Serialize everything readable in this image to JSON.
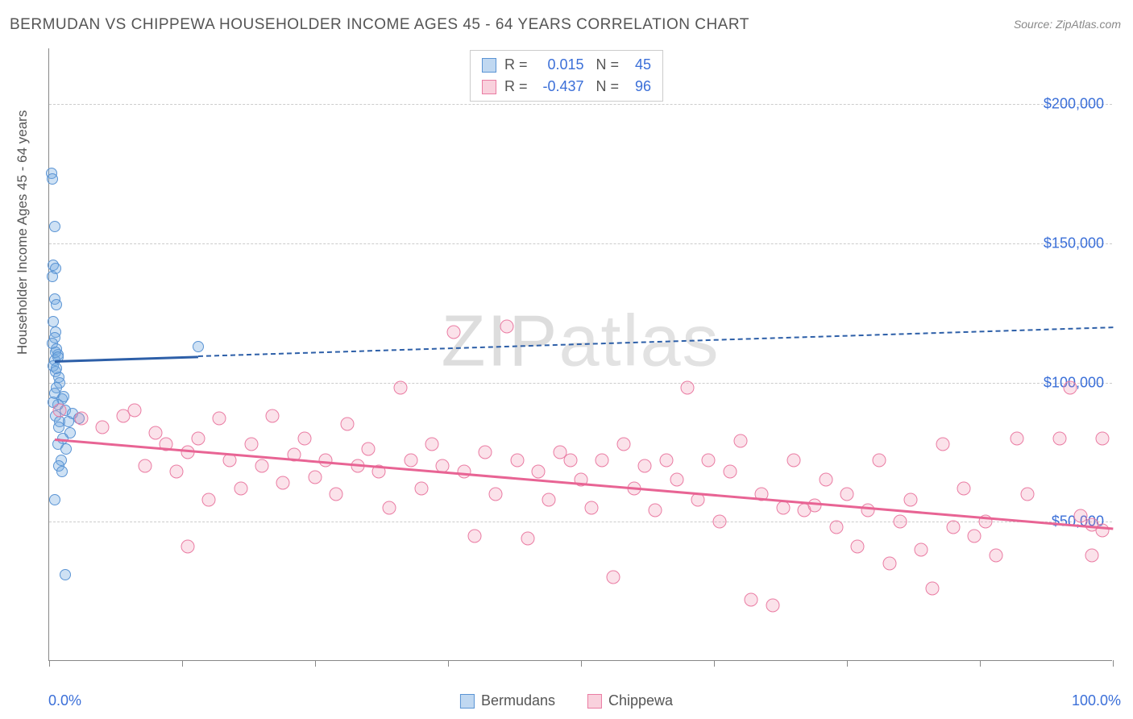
{
  "title": "BERMUDAN VS CHIPPEWA HOUSEHOLDER INCOME AGES 45 - 64 YEARS CORRELATION CHART",
  "source": "Source: ZipAtlas.com",
  "watermark": "ZIPatlas",
  "chart": {
    "type": "scatter",
    "y_axis_title": "Householder Income Ages 45 - 64 years",
    "x_min_label": "0.0%",
    "x_max_label": "100.0%",
    "x_domain": [
      0,
      100
    ],
    "y_domain": [
      0,
      220000
    ],
    "y_gridlines": [
      50000,
      100000,
      150000,
      200000
    ],
    "y_tick_labels": [
      "$50,000",
      "$100,000",
      "$150,000",
      "$200,000"
    ],
    "x_ticks_pct": [
      0,
      12.5,
      25,
      37.5,
      50,
      62.5,
      75,
      87.5,
      100
    ],
    "colors": {
      "blue_fill": "rgba(116,169,223,0.35)",
      "blue_stroke": "#5a94d4",
      "blue_line": "#2d5fa8",
      "pink_fill": "rgba(241,140,170,0.25)",
      "pink_stroke": "#ea7ca3",
      "pink_line": "#e86494",
      "tick_text": "#3b6fd8",
      "grid": "#cccccc",
      "axis": "#888888",
      "bg": "#ffffff"
    },
    "series": [
      {
        "name": "Bermudans",
        "color_key": "blue",
        "r": "0.015",
        "n": "45",
        "trend": {
          "x1": 0.5,
          "y1": 108000,
          "x2": 100,
          "y2": 120000,
          "solid_until_x": 14
        },
        "points": [
          [
            0.2,
            175000
          ],
          [
            0.3,
            173000
          ],
          [
            0.5,
            156000
          ],
          [
            0.4,
            142000
          ],
          [
            0.6,
            141000
          ],
          [
            0.3,
            138000
          ],
          [
            0.5,
            130000
          ],
          [
            0.7,
            128000
          ],
          [
            0.4,
            122000
          ],
          [
            0.6,
            118000
          ],
          [
            0.5,
            116000
          ],
          [
            0.3,
            114000
          ],
          [
            0.7,
            112000
          ],
          [
            0.8,
            110000
          ],
          [
            0.5,
            108000
          ],
          [
            0.4,
            106000
          ],
          [
            0.6,
            104000
          ],
          [
            0.9,
            102000
          ],
          [
            1.0,
            100000
          ],
          [
            0.7,
            98000
          ],
          [
            0.5,
            96000
          ],
          [
            1.2,
            94000
          ],
          [
            0.8,
            92000
          ],
          [
            1.5,
            90000
          ],
          [
            0.6,
            88000
          ],
          [
            1.0,
            86000
          ],
          [
            1.8,
            86000
          ],
          [
            0.9,
            84000
          ],
          [
            2.0,
            82000
          ],
          [
            1.3,
            80000
          ],
          [
            0.8,
            78000
          ],
          [
            1.6,
            76000
          ],
          [
            1.1,
            72000
          ],
          [
            2.2,
            89000
          ],
          [
            2.8,
            87000
          ],
          [
            0.7,
            105000
          ],
          [
            1.4,
            95000
          ],
          [
            0.9,
            70000
          ],
          [
            1.2,
            68000
          ],
          [
            0.5,
            58000
          ],
          [
            14.0,
            113000
          ],
          [
            1.5,
            31000
          ],
          [
            0.4,
            93000
          ],
          [
            0.6,
            111000
          ],
          [
            0.8,
            109000
          ]
        ]
      },
      {
        "name": "Chippewa",
        "color_key": "pink",
        "r": "-0.437",
        "n": "96",
        "trend": {
          "x1": 0.5,
          "y1": 80000,
          "x2": 100,
          "y2": 48000,
          "solid_until_x": 100
        },
        "points": [
          [
            1,
            90000
          ],
          [
            3,
            87000
          ],
          [
            5,
            84000
          ],
          [
            7,
            88000
          ],
          [
            8,
            90000
          ],
          [
            9,
            70000
          ],
          [
            10,
            82000
          ],
          [
            11,
            78000
          ],
          [
            12,
            68000
          ],
          [
            13,
            41000
          ],
          [
            13,
            75000
          ],
          [
            14,
            80000
          ],
          [
            15,
            58000
          ],
          [
            16,
            87000
          ],
          [
            17,
            72000
          ],
          [
            18,
            62000
          ],
          [
            19,
            78000
          ],
          [
            20,
            70000
          ],
          [
            21,
            88000
          ],
          [
            22,
            64000
          ],
          [
            23,
            74000
          ],
          [
            24,
            80000
          ],
          [
            25,
            66000
          ],
          [
            26,
            72000
          ],
          [
            27,
            60000
          ],
          [
            28,
            85000
          ],
          [
            29,
            70000
          ],
          [
            30,
            76000
          ],
          [
            31,
            68000
          ],
          [
            32,
            55000
          ],
          [
            33,
            98000
          ],
          [
            34,
            72000
          ],
          [
            35,
            62000
          ],
          [
            36,
            78000
          ],
          [
            37,
            70000
          ],
          [
            38,
            118000
          ],
          [
            39,
            68000
          ],
          [
            40,
            45000
          ],
          [
            41,
            75000
          ],
          [
            42,
            60000
          ],
          [
            43,
            120000
          ],
          [
            44,
            72000
          ],
          [
            45,
            44000
          ],
          [
            46,
            68000
          ],
          [
            47,
            58000
          ],
          [
            48,
            75000
          ],
          [
            49,
            72000
          ],
          [
            50,
            65000
          ],
          [
            51,
            55000
          ],
          [
            52,
            72000
          ],
          [
            53,
            30000
          ],
          [
            54,
            78000
          ],
          [
            55,
            62000
          ],
          [
            56,
            70000
          ],
          [
            57,
            54000
          ],
          [
            58,
            72000
          ],
          [
            59,
            65000
          ],
          [
            60,
            98000
          ],
          [
            61,
            58000
          ],
          [
            62,
            72000
          ],
          [
            63,
            50000
          ],
          [
            64,
            68000
          ],
          [
            65,
            79000
          ],
          [
            66,
            22000
          ],
          [
            67,
            60000
          ],
          [
            68,
            20000
          ],
          [
            69,
            55000
          ],
          [
            70,
            72000
          ],
          [
            71,
            54000
          ],
          [
            72,
            56000
          ],
          [
            73,
            65000
          ],
          [
            74,
            48000
          ],
          [
            75,
            60000
          ],
          [
            76,
            41000
          ],
          [
            77,
            54000
          ],
          [
            78,
            72000
          ],
          [
            79,
            35000
          ],
          [
            80,
            50000
          ],
          [
            81,
            58000
          ],
          [
            82,
            40000
          ],
          [
            83,
            26000
          ],
          [
            84,
            78000
          ],
          [
            85,
            48000
          ],
          [
            86,
            62000
          ],
          [
            87,
            45000
          ],
          [
            88,
            50000
          ],
          [
            89,
            38000
          ],
          [
            91,
            80000
          ],
          [
            92,
            60000
          ],
          [
            95,
            80000
          ],
          [
            96,
            98000
          ],
          [
            97,
            52000
          ],
          [
            98,
            49000
          ],
          [
            98,
            38000
          ],
          [
            99,
            47000
          ],
          [
            99,
            80000
          ]
        ]
      }
    ]
  }
}
